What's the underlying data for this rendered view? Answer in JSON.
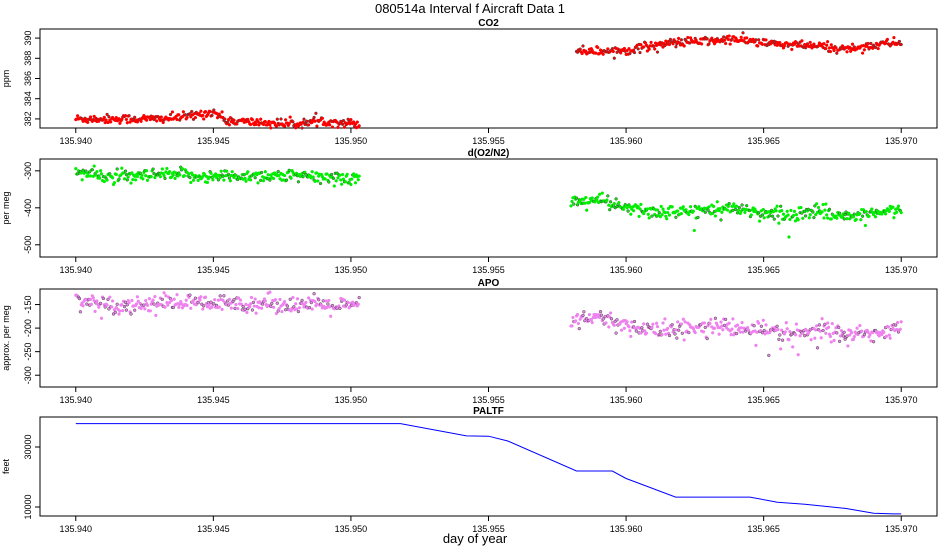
{
  "title": "080514a   Interval f Aircraft Data 1",
  "xlabel": "day of year",
  "x_ticks": [
    "135.940",
    "135.945",
    "135.950",
    "135.955",
    "135.960",
    "135.965",
    "135.970"
  ],
  "chart_data": [
    {
      "type": "scatter",
      "title": "CO2",
      "ylabel": "ppm",
      "xlim": [
        135.9387,
        135.9713
      ],
      "ylim": [
        381.1,
        390.9
      ],
      "yticks": [
        382,
        384,
        386,
        388,
        390
      ],
      "color": "#ff0000",
      "segments": [
        {
          "x_range": [
            135.94,
            135.9503
          ],
          "x": [
            135.94,
            135.9415,
            135.943,
            135.944,
            135.945,
            135.9455,
            135.947,
            135.948,
            135.949,
            135.9503
          ],
          "y": [
            382.0,
            382.0,
            382.0,
            382.2,
            382.7,
            381.8,
            381.6,
            381.5,
            381.8,
            381.5
          ]
        },
        {
          "x_range": [
            135.9582,
            135.97
          ],
          "x": [
            135.9582,
            135.959,
            135.96,
            135.961,
            135.962,
            135.963,
            135.964,
            135.965,
            135.966,
            135.967,
            135.968,
            135.969,
            135.97
          ],
          "y": [
            388.8,
            388.7,
            388.8,
            389.3,
            389.6,
            389.7,
            389.9,
            389.5,
            389.3,
            389.2,
            388.9,
            389.3,
            389.6
          ]
        }
      ]
    },
    {
      "type": "scatter",
      "title": "d(O2/N2)",
      "ylabel": "per meg",
      "xlim": [
        135.9387,
        135.9713
      ],
      "ylim": [
        -533,
        -268
      ],
      "yticks": [
        -300,
        -400,
        -500
      ],
      "color": "#00ee00",
      "segments": [
        {
          "x_range": [
            135.94,
            135.9503
          ],
          "x": [
            135.94,
            135.941,
            135.942,
            135.943,
            135.944,
            135.945,
            135.946,
            135.947,
            135.948,
            135.949,
            135.9503
          ],
          "y": [
            -303,
            -315,
            -318,
            -312,
            -312,
            -316,
            -314,
            -313,
            -315,
            -318,
            -320
          ]
        },
        {
          "x_range": [
            135.958,
            135.97
          ],
          "x": [
            135.958,
            135.959,
            135.96,
            135.961,
            135.962,
            135.963,
            135.964,
            135.965,
            135.966,
            135.967,
            135.968,
            135.969,
            135.97
          ],
          "y": [
            -385,
            -378,
            -402,
            -412,
            -412,
            -405,
            -406,
            -412,
            -418,
            -408,
            -424,
            -418,
            -404
          ]
        }
      ]
    },
    {
      "type": "scatter",
      "title": "APO",
      "ylabel": "approx. per meg",
      "xlim": [
        135.9387,
        135.9713
      ],
      "ylim": [
        -325,
        -117
      ],
      "yticks": [
        -150,
        -200,
        -250,
        -300
      ],
      "color": "#ee82ee",
      "segments": [
        {
          "x_range": [
            135.94,
            135.9503
          ],
          "x": [
            135.94,
            135.941,
            135.942,
            135.943,
            135.944,
            135.945,
            135.946,
            135.947,
            135.948,
            135.949,
            135.9503
          ],
          "y": [
            -138,
            -150,
            -152,
            -146,
            -146,
            -150,
            -148,
            -147,
            -150,
            -152,
            -155
          ]
        },
        {
          "x_range": [
            135.958,
            135.97
          ],
          "x": [
            135.958,
            135.959,
            135.96,
            135.961,
            135.962,
            135.963,
            135.964,
            135.965,
            135.966,
            135.967,
            135.968,
            135.969,
            135.97
          ],
          "y": [
            -185,
            -178,
            -195,
            -205,
            -200,
            -195,
            -200,
            -208,
            -212,
            -202,
            -215,
            -212,
            -200
          ]
        }
      ]
    },
    {
      "type": "line",
      "title": "PALTF",
      "ylabel": "feet",
      "xlim": [
        135.9387,
        135.9713
      ],
      "ylim": [
        7000,
        40000
      ],
      "yticks": [
        10000,
        30000
      ],
      "color": "#0000ff",
      "x": [
        135.94,
        135.9518,
        135.9542,
        135.955,
        135.9557,
        135.9582,
        135.9595,
        135.96,
        135.9618,
        135.9645,
        135.9655,
        135.9665,
        135.968,
        135.969,
        135.9697,
        135.97
      ],
      "y": [
        37800,
        37800,
        33700,
        33600,
        32000,
        22000,
        22000,
        19500,
        13300,
        13300,
        11600,
        10900,
        9500,
        7900,
        7700,
        7700
      ]
    }
  ]
}
